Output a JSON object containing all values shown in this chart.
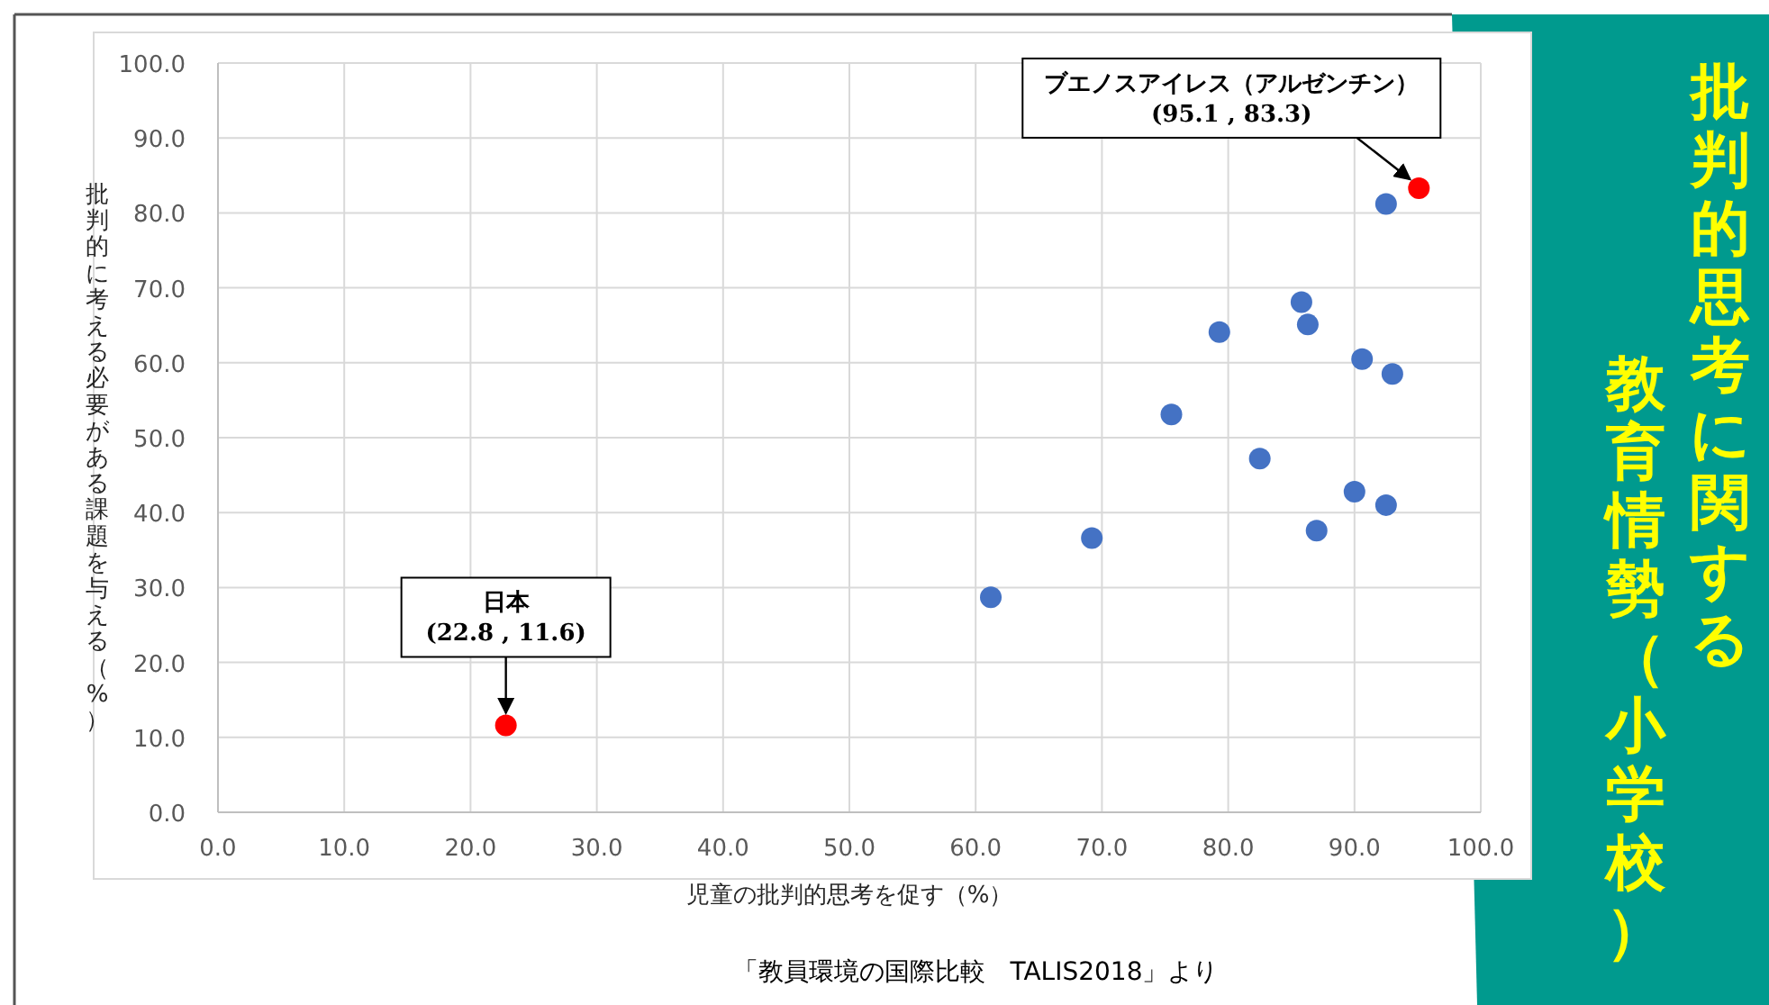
{
  "chart_data": {
    "type": "scatter",
    "title": "批判的思考に関する",
    "subtitle": "教育情勢（小学校）",
    "xlabel": "児童の批判的思考を促す（%）",
    "ylabel": "批判的に考える必要がある課題を与える（%）",
    "xlim": [
      0,
      100
    ],
    "ylim": [
      0,
      100
    ],
    "xticks": [
      {
        "value": 0,
        "label": "0.0"
      },
      {
        "value": 10,
        "label": "10.0"
      },
      {
        "value": 20,
        "label": "20.0"
      },
      {
        "value": 30,
        "label": "30.0"
      },
      {
        "value": 40,
        "label": "40.0"
      },
      {
        "value": 50,
        "label": "50.0"
      },
      {
        "value": 60,
        "label": "60.0"
      },
      {
        "value": 70,
        "label": "70.0"
      },
      {
        "value": 80,
        "label": "80.0"
      },
      {
        "value": 90,
        "label": "90.0"
      },
      {
        "value": 100,
        "label": "100.0"
      }
    ],
    "yticks": [
      {
        "value": 0,
        "label": "0.0"
      },
      {
        "value": 10,
        "label": "10.0"
      },
      {
        "value": 20,
        "label": "20.0"
      },
      {
        "value": 30,
        "label": "30.0"
      },
      {
        "value": 40,
        "label": "40.0"
      },
      {
        "value": 50,
        "label": "50.0"
      },
      {
        "value": 60,
        "label": "60.0"
      },
      {
        "value": 70,
        "label": "70.0"
      },
      {
        "value": 80,
        "label": "80.0"
      },
      {
        "value": 90,
        "label": "90.0"
      },
      {
        "value": 100,
        "label": "100.0"
      }
    ],
    "grid": true,
    "marker": "circle",
    "series": [
      {
        "color": "#4472c4",
        "x": [
          61.2,
          69.2,
          75.5,
          79.3,
          85.8,
          86.3,
          82.5,
          90.6,
          93.0,
          92.5,
          90.0,
          92.5,
          87.0
        ],
        "values": [
          28.7,
          36.6,
          53.1,
          64.1,
          68.1,
          65.1,
          47.2,
          60.5,
          58.5,
          81.2,
          42.8,
          41.0,
          37.6
        ]
      },
      {
        "color": "#ff0000",
        "x": [
          95.1,
          22.8
        ],
        "values": [
          83.3,
          11.6
        ]
      }
    ],
    "annotations": [
      {
        "text": "ブエノスアイレス（アルゼンチン）\n(95.1 , 83.3)",
        "x": 95.1,
        "y": 83.3
      },
      {
        "text": "日本\n(22.8 , 11.6)",
        "x": 22.8,
        "y": 11.6
      },
      "「教員環境の国際比較　TALIS2018」より"
    ]
  }
}
